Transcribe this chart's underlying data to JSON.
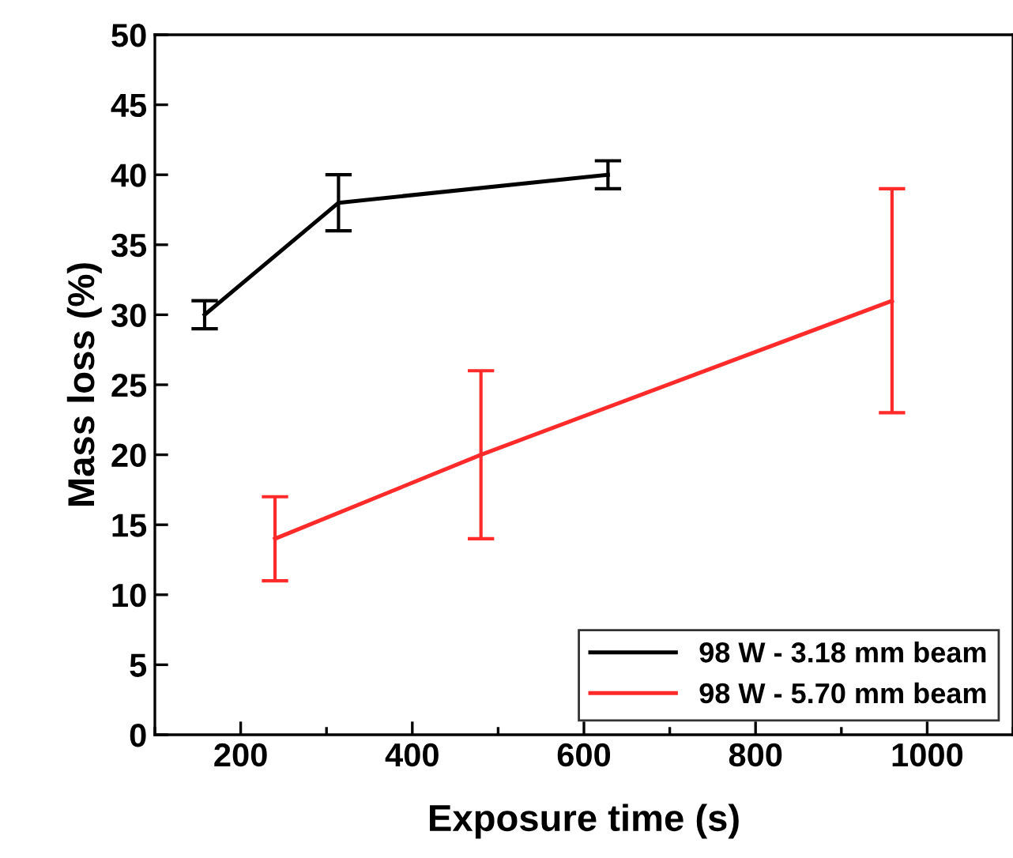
{
  "chart_data": {
    "type": "line",
    "xlabel": "Exposure time (s)",
    "ylabel": "Mass loss (%)",
    "xlim": [
      100,
      1100
    ],
    "xticks": [
      {
        "value": 100,
        "label": null
      },
      200,
      {
        "value": 300,
        "label": null
      },
      400,
      {
        "value": 500,
        "label": null
      },
      600,
      {
        "value": 700,
        "label": null
      },
      800,
      {
        "value": 900,
        "label": null
      },
      1000,
      {
        "value": 1100,
        "label": null
      }
    ],
    "ylim": [
      0,
      50
    ],
    "yticks": [
      0,
      5,
      10,
      15,
      20,
      25,
      30,
      35,
      40,
      45,
      50
    ],
    "grid": false,
    "legend": "bottom right",
    "marker": "none",
    "line_style": "solid",
    "series": [
      {
        "name": "98 W - 3.18 mm beam",
        "color": "#000000",
        "x": [
          158,
          314,
          628
        ],
        "values": [
          30,
          38,
          40
        ],
        "errors": [
          1,
          2,
          1
        ]
      },
      {
        "name": "98 W - 5.70 mm beam",
        "color": "#ff2a2a",
        "x": [
          240,
          480,
          959
        ],
        "values": [
          14,
          20,
          31
        ],
        "errors": [
          3,
          6,
          8
        ]
      }
    ]
  }
}
